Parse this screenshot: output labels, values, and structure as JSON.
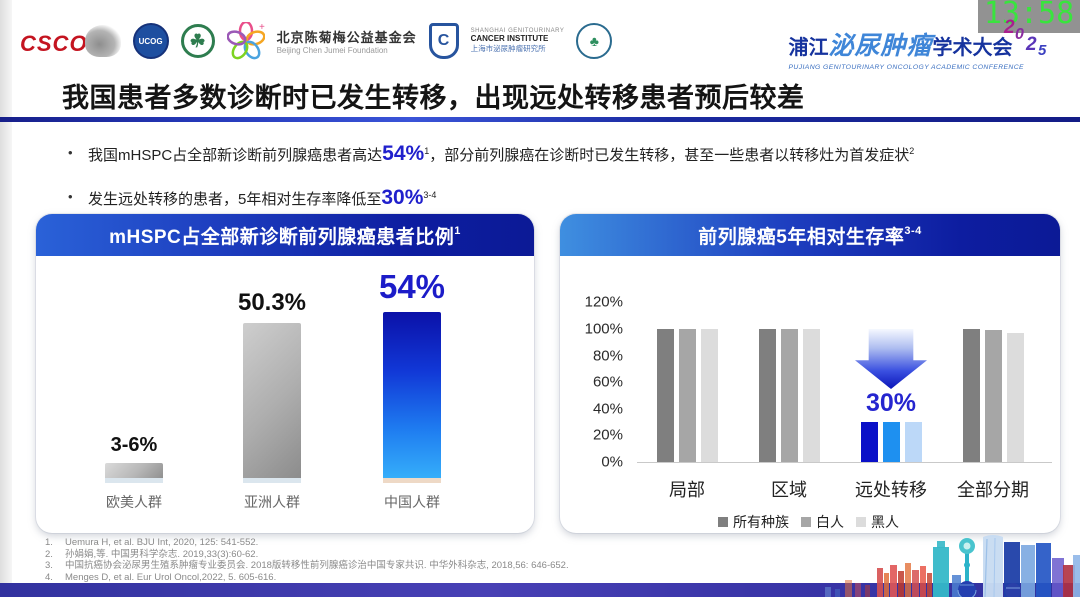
{
  "header": {
    "logos": {
      "csco": "CSCO",
      "ucog": "UCOG",
      "green_circle": "clover-society",
      "foundation_cn": "北京陈菊梅公益基金会",
      "foundation_en": "Beijing Chen Jumei Foundation",
      "institute_en1": "SHANGHAI GENITOURINARY",
      "institute_en2": "CANCER INSTITUTE",
      "institute_cn": "上海市泌尿肿瘤研究所",
      "badge": "society-badge"
    },
    "conference": {
      "title_prefix": "浦江",
      "title_stylized": "泌尿肿瘤",
      "title_suffix": "学术大会",
      "subtitle": "PUJIANG GENITOURINARY ONCOLOGY ACADEMIC CONFERENCE",
      "year": "2025"
    },
    "clock": "13:58"
  },
  "title": "我国患者多数诊断时已发生转移，出现远处转移患者预后较差",
  "bullets": {
    "b1_pre": "我国mHSPC占全部新诊断前列腺癌患者高达",
    "b1_value": "54%",
    "b1_sup_a": "1",
    "b1_mid": "，部分前列腺癌在诊断时已发生转移，甚至一些患者以转移灶为首发症状",
    "b1_sup_b": "2",
    "b2_pre": "发生远处转移的患者，5年相对生存率降低至",
    "b2_value": "30%",
    "b2_sup_a": "3-4"
  },
  "chart_data": [
    {
      "type": "bar",
      "title": "mHSPC占全部新诊断前列腺癌患者比例",
      "title_sup": "1",
      "categories": [
        "欧美人群",
        "亚洲人群",
        "中国人群"
      ],
      "values": [
        5,
        50.3,
        54
      ],
      "value_labels": [
        "3-6%",
        "50.3%",
        "54%"
      ],
      "ylim": [
        0,
        60
      ],
      "grid": false,
      "legend": "none"
    },
    {
      "type": "bar",
      "title": "前列腺癌5年相对生存率",
      "title_sup": "3-4",
      "categories": [
        "局部",
        "区域",
        "远处转移",
        "全部分期"
      ],
      "series": [
        {
          "name": "所有种族",
          "values": [
            100,
            100,
            30,
            100
          ]
        },
        {
          "name": "白人",
          "values": [
            100,
            100,
            30,
            99
          ]
        },
        {
          "name": "黑人",
          "values": [
            100,
            100,
            30,
            97
          ]
        }
      ],
      "annotation": "30%",
      "ytick_labels": [
        "0%",
        "20%",
        "40%",
        "60%",
        "80%",
        "100%",
        "120%"
      ],
      "ylim": [
        0,
        120
      ],
      "grid": false,
      "legend_position": "bottom"
    }
  ],
  "references": [
    "Uemura H, et al. BJU Int, 2020, 125: 541-552.",
    "孙娟娟,等. 中国男科学杂志. 2019,33(3):60-62.",
    "中国抗癌协会泌尿男生殖系肿瘤专业委员会. 2018版转移性前列腺癌诊治中国专家共识. 中华外科杂志, 2018,56: 646-652.",
    "Menges D, et al. Eur Urol Oncol,2022, 5. 605-616."
  ],
  "colors": {
    "accent_blue": "#2020cc",
    "gray_bar": "#9a9a9a",
    "series_all": "#7f7f7f",
    "series_white": "#a6a6a6",
    "series_black": "#dcdcdc",
    "metastasis_all": "#0a10c8",
    "metastasis_white": "#1e90f0",
    "metastasis_black": "#bcd8f8"
  }
}
